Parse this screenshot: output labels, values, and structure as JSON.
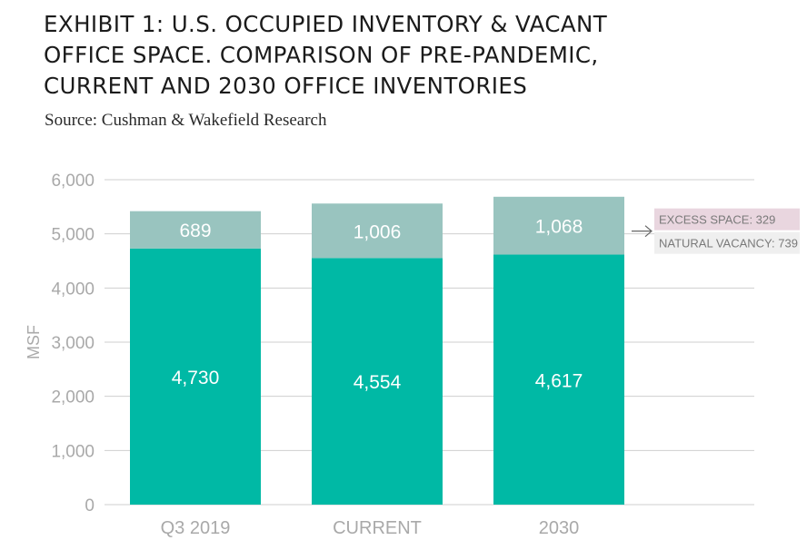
{
  "header": {
    "title_lines": [
      "EXHIBIT 1: U.S. OCCUPIED INVENTORY & VACANT",
      "OFFICE SPACE. COMPARISON OF PRE-PANDEMIC,",
      "CURRENT AND 2030 OFFICE INVENTORIES"
    ],
    "source": "Source: Cushman & Wakefield Research"
  },
  "chart_data": {
    "type": "bar",
    "stacked": true,
    "categories": [
      "Q3 2019",
      "CURRENT",
      "2030"
    ],
    "series": [
      {
        "name": "",
        "values": [
          4730,
          4554,
          4617
        ],
        "color": "#00b9a5",
        "value_labels": [
          "4,730",
          "4,554",
          "4,617"
        ]
      },
      {
        "name": "",
        "values": [
          689,
          1006,
          1068
        ],
        "color": "#99c4bf",
        "value_labels": [
          "689",
          "1,006",
          "1,068"
        ]
      }
    ],
    "ylabel": "MSF",
    "ylim": [
      0,
      6000
    ],
    "yticks": [
      0,
      1000,
      2000,
      3000,
      4000,
      5000,
      6000
    ],
    "ytick_labels": [
      "0",
      "1,000",
      "2,000",
      "3,000",
      "4,000",
      "5,000",
      "6,000"
    ],
    "grid": true,
    "callout": {
      "target_category": "2030",
      "lines": [
        {
          "text": "EXCESS SPACE: 329",
          "bg": "#e9d6df"
        },
        {
          "text": "NATURAL VACANCY: 739",
          "bg": "#efefef"
        }
      ]
    },
    "colors": {
      "grid": "#cfcfcf",
      "axis_text": "#a9a9a9",
      "bar_label": "#ffffff",
      "callout_text": "#7a7a7a",
      "arrow": "#666666"
    }
  }
}
